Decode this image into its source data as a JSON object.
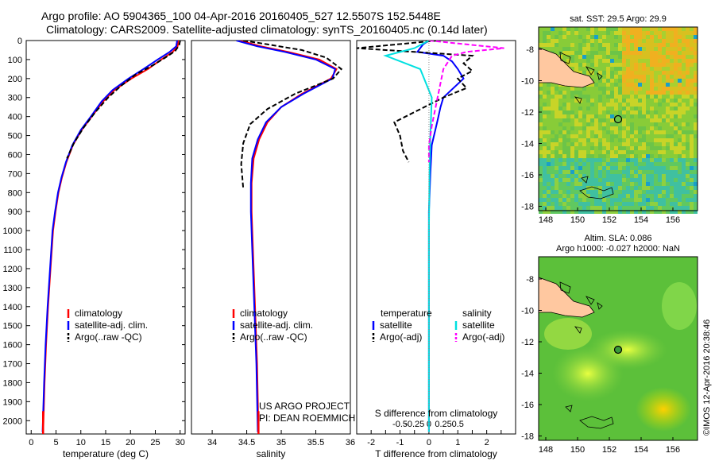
{
  "header": {
    "line1": "Argo profile: AO 5904365_100 04-Apr-2016 20160405_527 12.5507S 152.5448E",
    "line2": "Climatology: CARS2009. Satellite-adjusted climatology: synTS_20160405.nc (0.14d later)"
  },
  "colors": {
    "climatology": "#ff0000",
    "satellite": "#0000ff",
    "argo": "#000000",
    "sal_sat": "#00e0e0",
    "sal_argo": "#ff00ff"
  },
  "depth_axis": {
    "ticks": [
      0,
      100,
      200,
      300,
      400,
      500,
      600,
      700,
      800,
      900,
      1000,
      1100,
      1200,
      1300,
      1400,
      1500,
      1600,
      1700,
      1800,
      1900,
      2000
    ],
    "range": [
      0,
      2070
    ]
  },
  "chart_data": [
    {
      "type": "line",
      "id": "temperature",
      "xlabel": "temperature (deg C)",
      "xlim": [
        -1,
        31
      ],
      "xticks": [
        0,
        5,
        10,
        15,
        20,
        25,
        30
      ],
      "legend": [
        "climatology",
        "satellite-adj. clim.",
        "Argo(..raw -QC)"
      ],
      "series": [
        {
          "name": "climatology",
          "color": "#ff0000",
          "points": [
            [
              29.6,
              0
            ],
            [
              29.5,
              30
            ],
            [
              28.5,
              60
            ],
            [
              26.2,
              100
            ],
            [
              23.5,
              150
            ],
            [
              20.2,
              200
            ],
            [
              16.8,
              260
            ],
            [
              14.5,
              320
            ],
            [
              12.2,
              400
            ],
            [
              10.2,
              470
            ],
            [
              8.4,
              550
            ],
            [
              7.1,
              640
            ],
            [
              6.2,
              720
            ],
            [
              5.5,
              800
            ],
            [
              4.9,
              900
            ],
            [
              4.4,
              1000
            ],
            [
              3.9,
              1200
            ],
            [
              3.4,
              1400
            ],
            [
              3.0,
              1600
            ],
            [
              2.7,
              1800
            ],
            [
              2.4,
              2060
            ]
          ]
        },
        {
          "name": "satellite-adj. clim.",
          "color": "#0000ff",
          "points": [
            [
              29.4,
              0
            ],
            [
              29.2,
              30
            ],
            [
              27.9,
              60
            ],
            [
              25.5,
              100
            ],
            [
              22.6,
              150
            ],
            [
              19.6,
              200
            ],
            [
              16.4,
              260
            ],
            [
              14.2,
              320
            ],
            [
              12.0,
              400
            ],
            [
              10.0,
              470
            ],
            [
              8.3,
              550
            ],
            [
              7.0,
              640
            ],
            [
              6.1,
              720
            ],
            [
              5.4,
              800
            ],
            [
              4.8,
              900
            ],
            [
              4.3,
              1000
            ],
            [
              3.8,
              1200
            ],
            [
              3.3,
              1400
            ],
            [
              2.9,
              1600
            ],
            [
              2.6,
              1800
            ],
            [
              2.3,
              2060
            ]
          ]
        },
        {
          "name": "Argo(..raw -QC)",
          "color": "#000000",
          "dashed": true,
          "points": [
            [
              30.0,
              0
            ],
            [
              29.8,
              25
            ],
            [
              29.0,
              55
            ],
            [
              27.0,
              90
            ],
            [
              24.5,
              130
            ],
            [
              21.0,
              180
            ],
            [
              18.0,
              240
            ],
            [
              15.5,
              300
            ],
            [
              12.8,
              380
            ],
            [
              10.5,
              460
            ],
            [
              8.6,
              540
            ],
            [
              7.2,
              620
            ]
          ]
        }
      ]
    },
    {
      "type": "line",
      "id": "salinity",
      "xlabel": "salinity",
      "xlim": [
        33.7,
        36.0
      ],
      "xticks": [
        34,
        34.5,
        35,
        35.5,
        36
      ],
      "legend": [
        "climatology",
        "satellite-adj. clim.",
        "Argo(..raw -QC)"
      ],
      "series": [
        {
          "name": "climatology",
          "color": "#ff0000",
          "points": [
            [
              34.4,
              0
            ],
            [
              34.7,
              30
            ],
            [
              35.1,
              60
            ],
            [
              35.55,
              100
            ],
            [
              35.8,
              150
            ],
            [
              35.72,
              200
            ],
            [
              35.3,
              280
            ],
            [
              35.0,
              350
            ],
            [
              34.8,
              430
            ],
            [
              34.68,
              520
            ],
            [
              34.6,
              620
            ],
            [
              34.57,
              750
            ],
            [
              34.57,
              900
            ],
            [
              34.59,
              1100
            ],
            [
              34.62,
              1400
            ],
            [
              34.65,
              1700
            ],
            [
              34.67,
              2060
            ]
          ]
        },
        {
          "name": "satellite-adj. clim.",
          "color": "#0000ff",
          "points": [
            [
              34.35,
              0
            ],
            [
              34.65,
              30
            ],
            [
              35.05,
              60
            ],
            [
              35.5,
              100
            ],
            [
              35.78,
              150
            ],
            [
              35.74,
              200
            ],
            [
              35.32,
              280
            ],
            [
              35.0,
              350
            ],
            [
              34.78,
              430
            ],
            [
              34.66,
              520
            ],
            [
              34.58,
              620
            ],
            [
              34.56,
              750
            ],
            [
              34.56,
              900
            ],
            [
              34.58,
              1100
            ],
            [
              34.61,
              1400
            ],
            [
              34.64,
              1700
            ],
            [
              34.66,
              2060
            ]
          ]
        },
        {
          "name": "Argo(..raw -QC)",
          "color": "#000000",
          "dashed": true,
          "points": [
            [
              34.45,
              0
            ],
            [
              34.8,
              20
            ],
            [
              35.3,
              50
            ],
            [
              35.65,
              90
            ],
            [
              35.87,
              150
            ],
            [
              35.75,
              200
            ],
            [
              35.2,
              280
            ],
            [
              34.8,
              360
            ],
            [
              34.55,
              440
            ],
            [
              34.45,
              540
            ],
            [
              34.42,
              650
            ],
            [
              34.45,
              780
            ]
          ]
        }
      ]
    },
    {
      "type": "line",
      "id": "difference",
      "xlabel": "T difference from climatology",
      "xlabel_top": "S difference from climatology",
      "xlim": [
        -2.5,
        3.0
      ],
      "xticks": [
        -2,
        -1.5,
        -1,
        -0.5,
        0,
        0.5,
        1,
        1.5,
        2,
        2.5
      ],
      "xticklabels": [
        "-2",
        "",
        "-1",
        "",
        "0",
        "",
        "1",
        "",
        "2",
        ""
      ],
      "sticks": [
        -0.5,
        -0.25,
        0,
        0.25,
        0.5
      ],
      "sticklabels": [
        "-0.5",
        "-0.25",
        "0",
        "0.25",
        "0.5"
      ],
      "legend_headers": [
        "temperature",
        "salinity"
      ],
      "legend": [
        "satellite",
        "Argo(-adj)",
        "satellite",
        "Argo(-adj)"
      ],
      "series": [
        {
          "name": "satellite",
          "color": "#0000ff",
          "points": [
            [
              0,
              0
            ],
            [
              -0.2,
              20
            ],
            [
              -0.4,
              60
            ],
            [
              0.5,
              80
            ],
            [
              0.8,
              110
            ],
            [
              1.0,
              150
            ],
            [
              1.2,
              200
            ],
            [
              0.5,
              300
            ],
            [
              0.4,
              350
            ],
            [
              0.3,
              420
            ],
            [
              0.1,
              550
            ],
            [
              0.05,
              700
            ],
            [
              0.0,
              900
            ],
            [
              0.0,
              2060
            ]
          ]
        },
        {
          "name": "Argo(-adj)",
          "color": "#000000",
          "dashed": true,
          "points": [
            [
              0.3,
              0
            ],
            [
              -2.5,
              40
            ],
            [
              -0.5,
              60
            ],
            [
              1.5,
              80
            ],
            [
              1.2,
              120
            ],
            [
              1.5,
              160
            ],
            [
              1.0,
              200
            ],
            [
              1.3,
              250
            ],
            [
              0.5,
              300
            ],
            [
              -1.2,
              430
            ],
            [
              -1.0,
              500
            ],
            [
              -0.9,
              580
            ],
            [
              -0.7,
              640
            ]
          ]
        },
        {
          "name": "satellite",
          "color": "#00e0e0",
          "points": [
            [
              0,
              0
            ],
            [
              -0.5,
              40
            ],
            [
              -1.5,
              80
            ],
            [
              -0.3,
              150
            ],
            [
              0.1,
              300
            ],
            [
              0.05,
              500
            ],
            [
              0.02,
              700
            ],
            [
              0.0,
              1000
            ],
            [
              0.0,
              2060
            ]
          ]
        },
        {
          "name": "Argo(-adj)",
          "color": "#ff00ff",
          "dashed": true,
          "points": [
            [
              0,
              0
            ],
            [
              2.6,
              40
            ],
            [
              1.3,
              60
            ],
            [
              0.8,
              80
            ],
            [
              0.5,
              150
            ],
            [
              0.3,
              300
            ],
            [
              0.1,
              450
            ],
            [
              0.0,
              550
            ],
            [
              0.0,
              640
            ]
          ]
        }
      ]
    }
  ],
  "maps": {
    "sst": {
      "title": "sat. SST: 29.5 Argo: 29.9",
      "yticks": [
        "-8",
        "-10",
        "-12",
        "-14",
        "-16",
        "-18"
      ],
      "xticks": [
        "148",
        "150",
        "152",
        "154",
        "156"
      ]
    },
    "sla": {
      "title_line1": "Altim. SLA: 0.086",
      "title_line2": "Argo h1000: -0.027 h2000: NaN",
      "yticks": [
        "-8",
        "-10",
        "-12",
        "-14",
        "-16",
        "-18"
      ],
      "xticks": [
        "148",
        "150",
        "152",
        "154",
        "156"
      ]
    }
  },
  "annotations": {
    "project": "US ARGO PROJECT",
    "pi": "PI: DEAN ROEMMICH",
    "stamp": "©IMOS 12-Apr-2016 20:38:46"
  }
}
